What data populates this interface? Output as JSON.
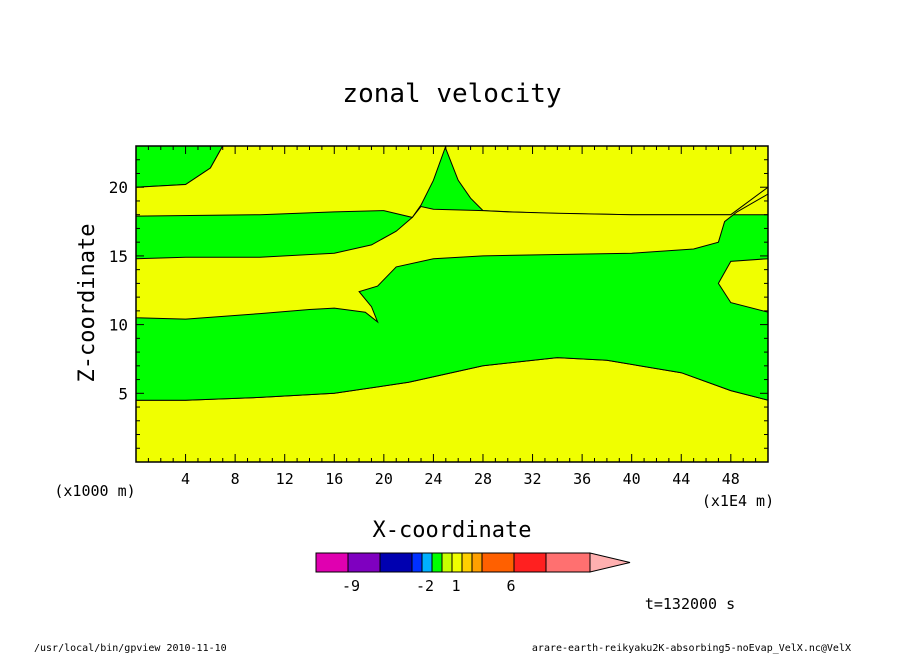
{
  "chart_data": {
    "type": "contour",
    "title": "zonal velocity",
    "xlabel": "X-coordinate",
    "ylabel": "Z-coordinate",
    "x_unit": "(x1E4 m)",
    "y_unit": "(x1000 m)",
    "xlim": [
      0,
      51
    ],
    "ylim": [
      0,
      23
    ],
    "x_ticks": [
      "4",
      "8",
      "12",
      "16",
      "20",
      "24",
      "28",
      "32",
      "36",
      "40",
      "44",
      "48"
    ],
    "y_ticks": [
      "5",
      "10",
      "15",
      "20"
    ],
    "fill_colors": {
      "positive_low": "#f0ff00",
      "positive_mid": "#00ff00"
    },
    "regions": [
      {
        "level": "yellow",
        "points": [
          [
            0,
            0
          ],
          [
            51,
            0
          ],
          [
            51,
            4.5
          ],
          [
            48,
            5.2
          ],
          [
            44,
            6.5
          ],
          [
            38,
            7.4
          ],
          [
            34,
            7.6
          ],
          [
            28,
            7.0
          ],
          [
            22,
            5.8
          ],
          [
            16,
            5.0
          ],
          [
            10,
            4.7
          ],
          [
            4,
            4.5
          ],
          [
            0,
            4.5
          ]
        ]
      },
      {
        "level": "green",
        "points": [
          [
            0,
            4.5
          ],
          [
            4,
            4.5
          ],
          [
            10,
            4.7
          ],
          [
            16,
            5.0
          ],
          [
            22,
            5.8
          ],
          [
            28,
            7.0
          ],
          [
            34,
            7.6
          ],
          [
            38,
            7.4
          ],
          [
            44,
            6.5
          ],
          [
            48,
            5.2
          ],
          [
            51,
            4.5
          ],
          [
            51,
            10.9
          ],
          [
            48,
            11.6
          ],
          [
            47,
            13.0
          ],
          [
            48,
            14.6
          ],
          [
            51,
            14.8
          ],
          [
            51,
            18.0
          ],
          [
            47,
            18.0
          ],
          [
            45,
            18.0
          ],
          [
            40,
            18.0
          ],
          [
            33,
            18.1
          ],
          [
            28,
            18.3
          ],
          [
            27,
            19.2
          ],
          [
            26,
            20.5
          ],
          [
            25,
            22.8
          ],
          [
            24,
            23
          ],
          [
            0,
            23
          ],
          [
            0,
            20
          ],
          [
            4,
            20.2
          ],
          [
            6,
            21.4
          ],
          [
            7,
            23
          ],
          [
            0,
            23
          ]
        ]
      },
      {
        "level": "yellow",
        "points": [
          [
            0,
            10.5
          ],
          [
            4,
            10.4
          ],
          [
            10,
            10.8
          ],
          [
            14,
            11.1
          ],
          [
            16,
            11.2
          ],
          [
            18.5,
            10.9
          ],
          [
            19.5,
            10.2
          ],
          [
            19,
            11.3
          ],
          [
            18,
            12.4
          ],
          [
            19.5,
            12.8
          ],
          [
            21,
            14.2
          ],
          [
            24,
            14.8
          ],
          [
            28,
            15.0
          ],
          [
            34,
            15.1
          ],
          [
            40,
            15.2
          ],
          [
            45,
            15.5
          ],
          [
            47,
            16.0
          ],
          [
            47.5,
            17.5
          ],
          [
            48.5,
            18.2
          ],
          [
            51,
            19.5
          ],
          [
            51,
            20.0
          ],
          [
            48,
            18.0
          ],
          [
            40,
            18.0
          ],
          [
            34,
            18.1
          ],
          [
            30,
            18.2
          ],
          [
            28,
            18.3
          ],
          [
            24,
            18.4
          ],
          [
            23,
            18.6
          ],
          [
            22.3,
            17.8
          ],
          [
            21,
            16.8
          ],
          [
            19,
            15.8
          ],
          [
            16,
            15.2
          ],
          [
            10,
            14.9
          ],
          [
            4,
            14.9
          ],
          [
            0,
            14.8
          ]
        ]
      },
      {
        "level": "yellow",
        "points": [
          [
            0,
            17.9
          ],
          [
            10,
            18.0
          ],
          [
            16,
            18.2
          ],
          [
            20,
            18.3
          ],
          [
            22.3,
            17.8
          ],
          [
            23,
            18.7
          ],
          [
            24,
            20.5
          ],
          [
            25,
            23
          ],
          [
            7,
            23
          ],
          [
            6,
            21.4
          ],
          [
            4,
            20.2
          ],
          [
            0,
            20
          ]
        ]
      }
    ],
    "colorbar": {
      "labels": [
        "-9",
        "-2",
        "1",
        "6"
      ],
      "colors": [
        "#e000b0",
        "#7f00c0",
        "#0000b0",
        "#0030ff",
        "#00b0ff",
        "#00ff00",
        "#c8ff00",
        "#f0ff00",
        "#ffd000",
        "#ffa000",
        "#ff6000",
        "#ff2020",
        "#ff7070",
        "#ffb0b0"
      ]
    },
    "time_label": "t=132000 s"
  },
  "footer": {
    "left": "/usr/local/bin/gpview  2010-11-10",
    "right": "arare-earth-reikyaku2K-absorbing5-noEvap_VelX.nc@VelX"
  }
}
